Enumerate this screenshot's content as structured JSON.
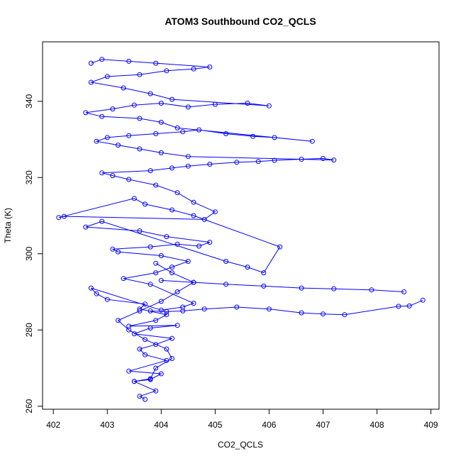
{
  "chart_data": {
    "type": "scatter",
    "title": "ATOM3 Southbound CO2_QCLS",
    "xlabel": "CO2_QCLS",
    "ylabel": "Theta (K)",
    "xlim": [
      401.8,
      409.15
    ],
    "ylim": [
      259.2,
      355.6
    ],
    "x_ticks": [
      "402",
      "403",
      "404",
      "405",
      "406",
      "407",
      "408",
      "409"
    ],
    "y_ticks": [
      "260",
      "280",
      "300",
      "320",
      "340"
    ],
    "grid": false,
    "legend": "none",
    "style": "points connected by lines (type='b'), open circles",
    "color": "#0000ff",
    "series": [
      {
        "x": [
          403.7,
          403.6,
          403.9,
          403.5,
          403.8,
          404.0,
          403.4,
          404.1,
          403.7,
          403.6,
          403.9,
          404.2,
          403.5,
          403.8,
          404.3,
          403.4,
          403.9,
          404.1,
          403.6,
          403.7,
          403.0,
          402.8,
          402.7,
          404.0,
          404.4,
          404.6,
          403.8,
          403.3,
          403.9,
          404.2,
          404.5,
          404.0,
          403.2,
          403.1,
          403.8,
          404.3,
          404.7,
          404.9,
          404.1,
          403.6,
          402.6,
          402.9,
          405.2,
          405.6,
          405.9,
          406.2,
          404.6,
          404.2,
          403.7,
          403.5,
          402.1,
          402.2,
          404.8,
          405.0,
          404.6,
          404.3,
          403.9,
          403.4,
          403.1,
          402.9,
          403.8,
          404.2,
          404.5,
          404.9,
          405.4,
          405.8,
          406.1,
          406.6,
          407.0,
          407.2,
          404.5,
          404.0,
          403.6,
          403.2,
          402.8,
          403.0,
          403.4,
          403.9,
          404.4,
          404.7,
          405.2,
          405.7,
          406.1,
          406.8,
          404.3,
          404.0,
          403.6,
          402.9,
          402.6,
          403.1,
          403.5,
          404.0,
          404.5,
          405.0,
          405.6,
          406.0,
          404.2,
          403.8,
          403.3,
          402.7,
          403.0,
          403.6,
          404.1,
          404.6,
          404.9,
          403.9,
          403.4,
          402.9,
          402.7
        ],
        "y": [
          261.8,
          262.6,
          264.0,
          266.5,
          267.0,
          268.5,
          269.2,
          272.0,
          273.5,
          275.0,
          276.2,
          277.8,
          279.0,
          280.5,
          281.2,
          281.0,
          282.5,
          284.0,
          285.5,
          286.8,
          288.0,
          289.5,
          291.0,
          285.2,
          286.0,
          287.0,
          292.0,
          293.5,
          295.0,
          296.5,
          298.0,
          299.5,
          300.5,
          301.2,
          301.8,
          302.5,
          302.0,
          303.0,
          304.5,
          306.0,
          307.0,
          308.5,
          298.0,
          296.5,
          295.0,
          301.8,
          310.0,
          311.5,
          313.0,
          314.5,
          309.5,
          309.8,
          309.0,
          311.0,
          313.5,
          316.0,
          318.0,
          319.5,
          320.5,
          321.2,
          321.8,
          322.5,
          323.0,
          323.5,
          324.0,
          324.2,
          324.5,
          324.8,
          325.0,
          324.6,
          325.5,
          326.5,
          327.5,
          328.5,
          329.5,
          330.5,
          331.0,
          331.5,
          332.0,
          332.5,
          331.5,
          330.8,
          330.5,
          329.5,
          333.0,
          334.5,
          335.5,
          336.0,
          337.0,
          338.0,
          339.0,
          339.5,
          338.5,
          339.2,
          339.5,
          338.8,
          340.5,
          342.0,
          343.5,
          345.0,
          346.5,
          347.0,
          348.0,
          348.5,
          349.0,
          350.0,
          350.5,
          351.0,
          350.0
        ]
      },
      {
        "x": [
          403.8,
          404.1,
          404.4,
          404.8,
          405.4,
          406.0,
          406.6,
          407.0,
          407.4,
          408.4,
          408.6,
          408.85
        ],
        "y": [
          285.0,
          284.8,
          285.0,
          285.5,
          286.0,
          285.5,
          284.5,
          284.2,
          284.0,
          286.2,
          286.3,
          287.8
        ]
      },
      {
        "x": [
          404.0,
          404.6,
          405.2,
          405.9,
          406.6,
          407.2,
          407.9,
          408.5
        ],
        "y": [
          293.0,
          292.5,
          292.0,
          291.5,
          291.0,
          290.8,
          290.5,
          290.0
        ]
      },
      {
        "x": [
          403.5,
          403.8,
          403.9,
          404.2,
          404.1,
          403.7,
          403.4,
          403.2,
          403.6,
          404.0,
          404.3,
          404.6,
          404.2,
          403.9
        ],
        "y": [
          266.5,
          267.2,
          270.0,
          272.5,
          275.0,
          277.5,
          280.0,
          282.5,
          285.0,
          287.5,
          290.0,
          292.5,
          295.0,
          297.5
        ]
      }
    ]
  }
}
